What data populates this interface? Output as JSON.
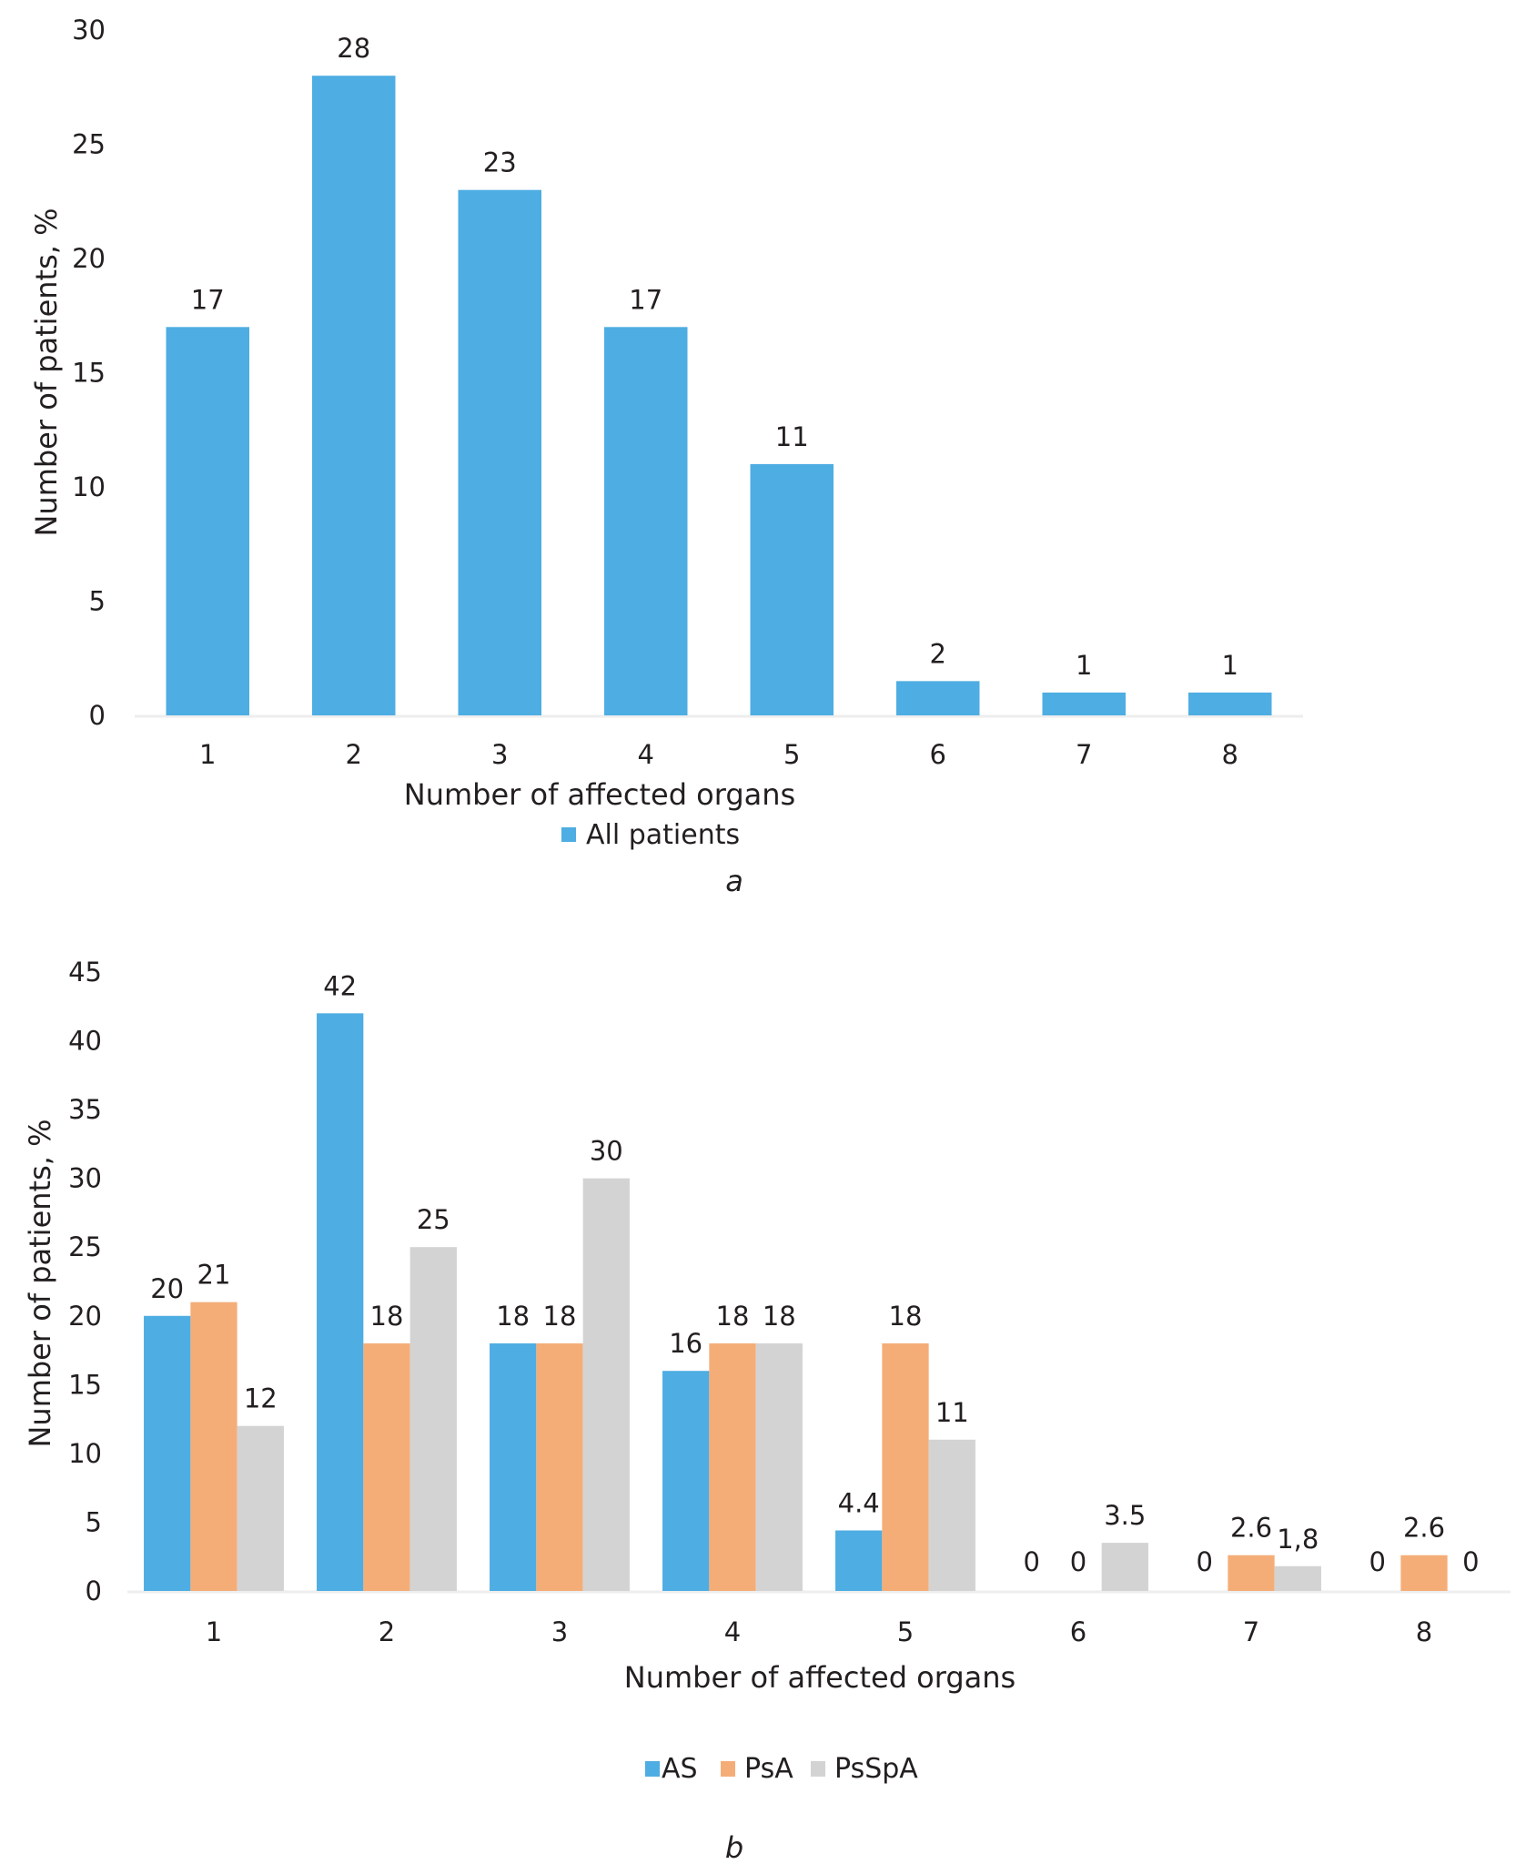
{
  "chart_data": [
    {
      "id": "a",
      "type": "bar",
      "panel_label": "a",
      "title": "",
      "xlabel": "Number of affected organs",
      "ylabel": "Number of patients, %",
      "categories": [
        "1",
        "2",
        "3",
        "4",
        "5",
        "6",
        "7",
        "8"
      ],
      "yticks": [
        "0",
        "5",
        "10",
        "15",
        "20",
        "25",
        "30"
      ],
      "ylim": [
        0,
        30
      ],
      "grid": false,
      "legend_position": "bottom",
      "series": [
        {
          "name": "All patients",
          "color": "#4eade2",
          "values": [
            17,
            28,
            23,
            17,
            11,
            1.5,
            1,
            1
          ],
          "labels": [
            "17",
            "28",
            "23",
            "17",
            "11",
            "2",
            "1",
            "1"
          ]
        }
      ]
    },
    {
      "id": "b",
      "type": "bar",
      "panel_label": "b",
      "title": "",
      "xlabel": "Number of affected organs",
      "ylabel": "Number of patients, %",
      "categories": [
        "1",
        "2",
        "3",
        "4",
        "5",
        "6",
        "7",
        "8"
      ],
      "yticks": [
        "0",
        "5",
        "10",
        "15",
        "20",
        "25",
        "30",
        "35",
        "40",
        "45"
      ],
      "ylim": [
        0,
        45
      ],
      "grid": false,
      "legend_position": "bottom",
      "series": [
        {
          "name": "AS",
          "color": "#4eade2",
          "values": [
            20,
            42,
            18,
            16,
            4.4,
            0,
            0,
            0
          ],
          "labels": [
            "20",
            "42",
            "18",
            "16",
            "4.4",
            "0",
            "0",
            "0"
          ]
        },
        {
          "name": "PsA",
          "color": "#f5ad78",
          "values": [
            21,
            18,
            18,
            18,
            18,
            0,
            2.6,
            2.6
          ],
          "labels": [
            "21",
            "18",
            "18",
            "18",
            "18",
            "0",
            "2.6",
            "2.6"
          ]
        },
        {
          "name": "PsSpA",
          "color": "#d3d3d3",
          "values": [
            12,
            25,
            30,
            18,
            11,
            3.5,
            1.8,
            0
          ],
          "labels": [
            "12",
            "25",
            "30",
            "18",
            "11",
            "3.5",
            "1,8",
            "0"
          ]
        }
      ]
    }
  ],
  "axis_line_color": "#eeeeee"
}
